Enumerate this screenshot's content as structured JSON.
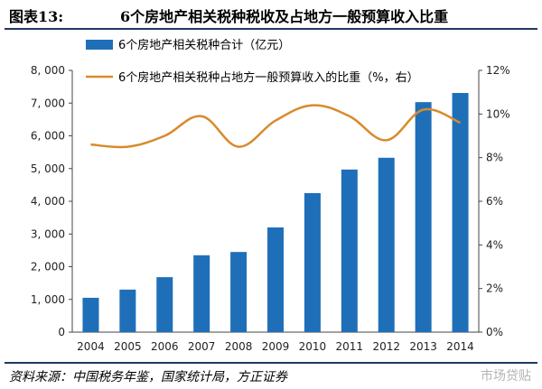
{
  "figure": {
    "number": "图表13:",
    "title": "6个房地产相关税种税收及占地方一般预算收入比重",
    "source": "资料来源：中国税务年鉴，国家统计局，方正证券",
    "watermark": "市场贷贴"
  },
  "colors": {
    "bar": "#1f6fb8",
    "line": "#d98a2b",
    "rule": "#1f3864"
  },
  "chart_data": {
    "type": "bar",
    "categories": [
      "2004",
      "2005",
      "2006",
      "2007",
      "2008",
      "2009",
      "2010",
      "2011",
      "2012",
      "2013",
      "2014"
    ],
    "series": [
      {
        "name": "6个房地产相关税种合计（亿元）",
        "type": "bar",
        "axis": "left",
        "values": [
          1050,
          1300,
          1680,
          2350,
          2450,
          3200,
          4250,
          4970,
          5330,
          7030,
          7310
        ]
      },
      {
        "name": "6个房地产相关税种占地方一般预算收入的比重（%，右）",
        "type": "line",
        "axis": "right",
        "values": [
          8.6,
          8.5,
          9.0,
          9.9,
          8.5,
          9.7,
          10.4,
          9.9,
          8.8,
          10.2,
          9.6
        ]
      }
    ],
    "y_left": {
      "min": 0,
      "max": 8000,
      "ticks": [
        0,
        1000,
        2000,
        3000,
        4000,
        5000,
        6000,
        7000,
        8000
      ],
      "tick_labels": [
        "0",
        "1, 000",
        "2, 000",
        "3, 000",
        "4, 000",
        "5, 000",
        "6, 000",
        "7, 000",
        "8, 000"
      ]
    },
    "y_right": {
      "min": 0,
      "max": 12,
      "ticks": [
        0,
        2,
        4,
        6,
        8,
        10,
        12
      ],
      "tick_labels": [
        "0%",
        "2%",
        "4%",
        "6%",
        "8%",
        "10%",
        "12%"
      ]
    },
    "grid": false,
    "legend_position": "top-left"
  }
}
